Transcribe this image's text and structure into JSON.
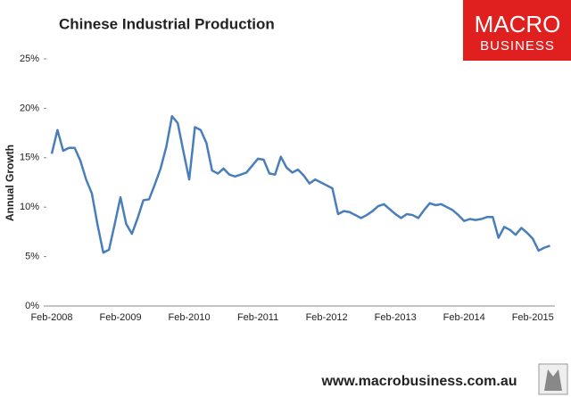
{
  "chart_data": {
    "type": "line",
    "title": "Chinese Industrial Production",
    "ylabel": "Annual Growth",
    "categories": [
      "Feb-2008",
      null,
      null,
      null,
      null,
      null,
      null,
      null,
      null,
      null,
      null,
      null,
      "Feb-2009",
      null,
      null,
      null,
      null,
      null,
      null,
      null,
      null,
      null,
      null,
      null,
      "Feb-2010",
      null,
      null,
      null,
      null,
      null,
      null,
      null,
      null,
      null,
      null,
      null,
      "Feb-2011",
      null,
      null,
      null,
      null,
      null,
      null,
      null,
      null,
      null,
      null,
      null,
      "Feb-2012",
      null,
      null,
      null,
      null,
      null,
      null,
      null,
      null,
      null,
      null,
      null,
      "Feb-2013",
      null,
      null,
      null,
      null,
      null,
      null,
      null,
      null,
      null,
      null,
      null,
      "Feb-2014",
      null,
      null,
      null,
      null,
      null,
      null,
      null,
      null,
      null,
      null,
      null,
      "Feb-2015",
      null,
      null,
      null
    ],
    "values": [
      15.4,
      17.8,
      15.7,
      16.0,
      16.0,
      14.7,
      12.8,
      11.4,
      8.2,
      5.4,
      5.7,
      8.3,
      11.0,
      8.3,
      7.3,
      8.9,
      10.7,
      10.8,
      12.3,
      13.9,
      16.1,
      19.2,
      18.5,
      15.6,
      12.8,
      18.1,
      17.8,
      16.5,
      13.7,
      13.4,
      13.9,
      13.3,
      13.1,
      13.3,
      13.5,
      14.2,
      14.9,
      14.8,
      13.4,
      13.3,
      15.1,
      14.0,
      13.5,
      13.8,
      13.2,
      12.4,
      12.8,
      12.5,
      12.2,
      11.9,
      9.3,
      9.6,
      9.5,
      9.2,
      8.9,
      9.2,
      9.6,
      10.1,
      10.3,
      9.8,
      9.3,
      8.9,
      9.3,
      9.2,
      8.9,
      9.7,
      10.4,
      10.2,
      10.3,
      10.0,
      9.7,
      9.2,
      8.6,
      8.8,
      8.7,
      8.8,
      9.0,
      9.0,
      6.9,
      8.0,
      7.7,
      7.2,
      7.9,
      7.4,
      6.8,
      5.6,
      5.9,
      6.1
    ],
    "color": "#4a7ebb",
    "ylim": [
      0,
      25
    ],
    "yticks": [
      {
        "value": 0,
        "label": "0%"
      },
      {
        "value": 5,
        "label": "5%"
      },
      {
        "value": 10,
        "label": "10%"
      },
      {
        "value": 15,
        "label": "15%"
      },
      {
        "value": 20,
        "label": "20%"
      },
      {
        "value": 25,
        "label": "25%"
      }
    ],
    "grid": false
  },
  "logo": {
    "line1": "MACRO",
    "line2": "BUSINESS"
  },
  "footer": "www.macrobusiness.com.au"
}
